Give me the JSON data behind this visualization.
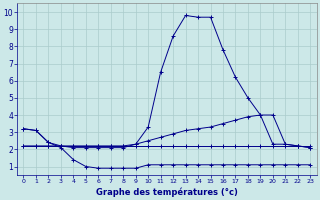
{
  "xlabel": "Graphe des températures (°c)",
  "background_color": "#cce8e8",
  "grid_color": "#aacccc",
  "line_color": "#00008b",
  "xlim": [
    -0.5,
    23.5
  ],
  "ylim": [
    0.5,
    10.5
  ],
  "xticks": [
    0,
    1,
    2,
    3,
    4,
    5,
    6,
    7,
    8,
    9,
    10,
    11,
    12,
    13,
    14,
    15,
    16,
    17,
    18,
    19,
    20,
    21,
    22,
    23
  ],
  "yticks": [
    1,
    2,
    3,
    4,
    5,
    6,
    7,
    8,
    9,
    10
  ],
  "curve_min": {
    "x": [
      0,
      1,
      2,
      3,
      4,
      5,
      6,
      7,
      8,
      9,
      10,
      11,
      12,
      13,
      14,
      15,
      16,
      17,
      18,
      19,
      20,
      21,
      22,
      23
    ],
    "y": [
      3.2,
      3.1,
      2.4,
      2.1,
      1.4,
      1.0,
      0.9,
      0.9,
      0.9,
      0.9,
      1.1,
      1.1,
      1.1,
      1.1,
      1.1,
      1.1,
      1.1,
      1.1,
      1.1,
      1.1,
      1.1,
      1.1,
      1.1,
      1.1
    ]
  },
  "curve_max": {
    "x": [
      0,
      1,
      2,
      3,
      4,
      5,
      6,
      7,
      8,
      9,
      10,
      11,
      12,
      13,
      14,
      15,
      16,
      17,
      18,
      19,
      20,
      21,
      22,
      23
    ],
    "y": [
      3.2,
      3.1,
      2.4,
      2.2,
      2.1,
      2.1,
      2.1,
      2.1,
      2.1,
      2.3,
      3.3,
      6.5,
      8.6,
      9.8,
      9.7,
      9.7,
      7.8,
      6.2,
      5.0,
      4.0,
      2.3,
      2.3,
      2.2,
      2.1
    ]
  },
  "curve_flat": {
    "x": [
      0,
      1,
      2,
      3,
      4,
      5,
      6,
      7,
      8,
      9,
      10,
      11,
      12,
      13,
      14,
      15,
      16,
      17,
      18,
      19,
      20,
      21,
      22,
      23
    ],
    "y": [
      2.2,
      2.2,
      2.2,
      2.2,
      2.2,
      2.2,
      2.2,
      2.2,
      2.2,
      2.2,
      2.2,
      2.2,
      2.2,
      2.2,
      2.2,
      2.2,
      2.2,
      2.2,
      2.2,
      2.2,
      2.2,
      2.2,
      2.2,
      2.2
    ]
  },
  "curve_rise": {
    "x": [
      0,
      1,
      2,
      3,
      4,
      5,
      6,
      7,
      8,
      9,
      10,
      11,
      12,
      13,
      14,
      15,
      16,
      17,
      18,
      19,
      20,
      21,
      22,
      23
    ],
    "y": [
      2.2,
      2.2,
      2.2,
      2.2,
      2.2,
      2.2,
      2.2,
      2.2,
      2.2,
      2.3,
      2.5,
      2.7,
      2.9,
      3.1,
      3.2,
      3.3,
      3.5,
      3.7,
      3.9,
      4.0,
      4.0,
      2.3,
      2.2,
      2.1
    ]
  }
}
